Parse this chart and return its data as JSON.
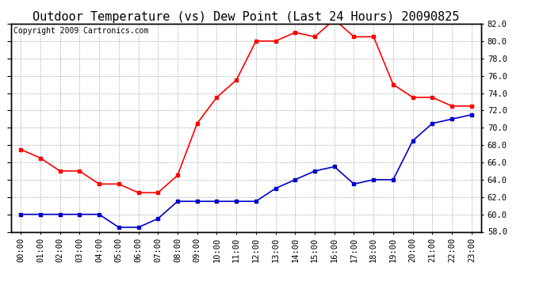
{
  "title": "Outdoor Temperature (vs) Dew Point (Last 24 Hours) 20090825",
  "copyright_text": "Copyright 2009 Cartronics.com",
  "x_labels": [
    "00:00",
    "01:00",
    "02:00",
    "03:00",
    "04:00",
    "05:00",
    "06:00",
    "07:00",
    "08:00",
    "09:00",
    "10:00",
    "11:00",
    "12:00",
    "13:00",
    "14:00",
    "15:00",
    "16:00",
    "17:00",
    "18:00",
    "19:00",
    "20:00",
    "21:00",
    "22:00",
    "23:00"
  ],
  "temp_data": [
    67.5,
    66.5,
    65.0,
    65.0,
    63.5,
    63.5,
    62.5,
    62.5,
    64.5,
    70.5,
    73.5,
    75.5,
    80.0,
    80.0,
    81.0,
    80.5,
    82.5,
    80.5,
    80.5,
    75.0,
    73.5,
    73.5,
    72.5,
    72.5
  ],
  "dew_data": [
    60.0,
    60.0,
    60.0,
    60.0,
    60.0,
    58.5,
    58.5,
    59.5,
    61.5,
    61.5,
    61.5,
    61.5,
    61.5,
    63.0,
    64.0,
    65.0,
    65.5,
    63.5,
    64.0,
    64.0,
    68.5,
    70.5,
    71.0,
    71.5
  ],
  "temp_color": "#ff0000",
  "dew_color": "#0000cc",
  "ylim": [
    58.0,
    82.0
  ],
  "yticks": [
    58.0,
    60.0,
    62.0,
    64.0,
    66.0,
    68.0,
    70.0,
    72.0,
    74.0,
    76.0,
    78.0,
    80.0,
    82.0
  ],
  "grid_color": "#aaaaaa",
  "bg_color": "#ffffff",
  "title_fontsize": 11,
  "copyright_fontsize": 7,
  "tick_fontsize": 7.5,
  "marker": "s",
  "marker_size": 2.5,
  "line_width": 1.2
}
